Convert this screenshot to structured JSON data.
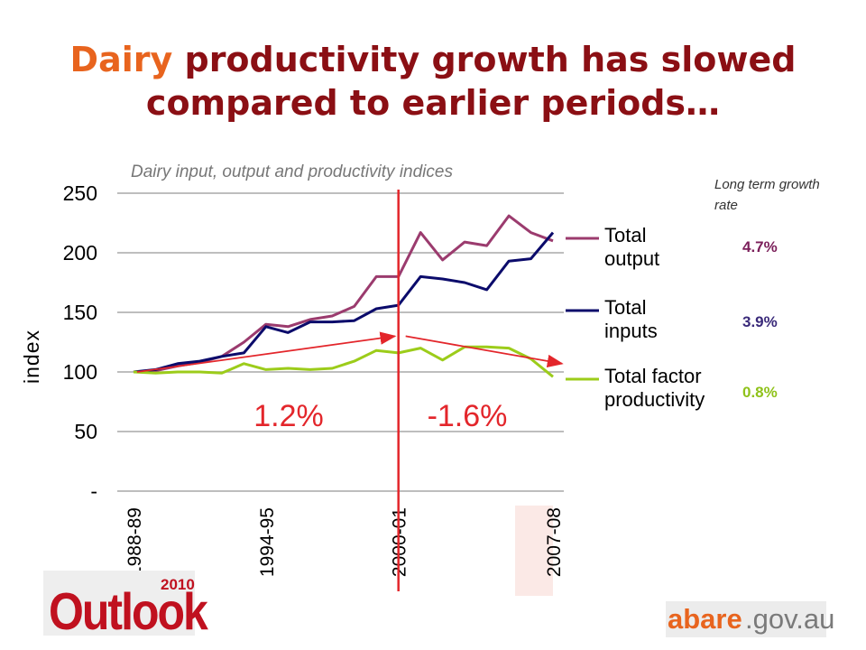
{
  "title": {
    "accent": "Dairy",
    "rest_line1": " productivity growth has slowed",
    "line2": "compared to earlier periods…"
  },
  "subtitle": "Dairy input, output and productivity indices",
  "rates_header": "Long term growth rate",
  "rates": [
    {
      "value": "4.7%",
      "color": "#7b1f5a"
    },
    {
      "value": "3.9%",
      "color": "#3a2a7a"
    },
    {
      "value": "0.8%",
      "color": "#8fc21a"
    }
  ],
  "period_labels": [
    "1.2%",
    "-1.6%"
  ],
  "colors": {
    "output": "#9b3b6e",
    "inputs": "#0b0b6b",
    "tfp": "#9ccc1a",
    "divider": "#e3262b",
    "trend": "#e3262b",
    "grid": "#a8a8a8",
    "title_dark": "#8b0f14",
    "title_accent": "#e8641e"
  },
  "logos": {
    "outlook_word": "Outlook",
    "outlook_year": "2010",
    "abare_a": "abare",
    "abare_b": ".gov.au"
  },
  "chart_data": {
    "type": "line",
    "title": "Dairy input, output and productivity indices",
    "ylabel": "index",
    "ylim": [
      0,
      250
    ],
    "y_ticks": [
      0,
      50,
      100,
      150,
      200,
      250
    ],
    "y_tick_labels": [
      "-",
      "50",
      "100",
      "150",
      "200",
      "250"
    ],
    "x": [
      "1988-89",
      "1989-90",
      "1990-91",
      "1991-92",
      "1992-93",
      "1993-94",
      "1994-95",
      "1995-96",
      "1996-97",
      "1997-98",
      "1998-99",
      "1999-00",
      "2000-01",
      "2001-02",
      "2002-03",
      "2003-04",
      "2004-05",
      "2005-06",
      "2006-07",
      "2007-08"
    ],
    "x_tick_labels": [
      "1988-89",
      "1994-95",
      "2000-01",
      "2007-08"
    ],
    "grid": true,
    "series": [
      {
        "name": "Total output",
        "values": [
          100,
          101,
          105,
          108,
          113,
          125,
          140,
          138,
          144,
          147,
          155,
          180,
          180,
          217,
          194,
          209,
          206,
          231,
          217,
          210
        ]
      },
      {
        "name": "Total inputs",
        "values": [
          100,
          102,
          107,
          109,
          113,
          116,
          138,
          133,
          142,
          142,
          143,
          153,
          156,
          180,
          178,
          175,
          169,
          193,
          195,
          217
        ]
      },
      {
        "name": "Total factor productivity",
        "values": [
          100,
          99,
          100,
          100,
          99,
          107,
          102,
          103,
          102,
          103,
          109,
          118,
          116,
          120,
          110,
          121,
          121,
          120,
          111,
          96
        ]
      }
    ],
    "legend_position": "right",
    "annotations": [
      {
        "text": "1.2%",
        "from": "1988-89",
        "to": "2000-01",
        "trend": [
          100,
          130
        ]
      },
      {
        "text": "-1.6%",
        "from": "2000-01",
        "to": "2007-08",
        "trend": [
          130,
          107
        ]
      }
    ],
    "divider_at": "2000-01"
  }
}
